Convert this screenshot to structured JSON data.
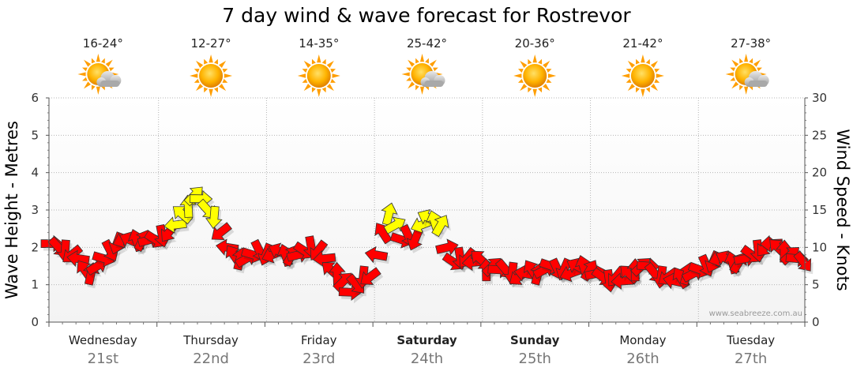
{
  "chart_data": {
    "type": "line",
    "title": "7 day wind & wave forecast for Rostrevor",
    "ylabel_left": "Wave Height - Metres",
    "ylabel_right": "Wind Speed - Knots",
    "ylim_left": [
      0,
      6
    ],
    "ylim_right": [
      0,
      30
    ],
    "left_ticks": [
      "0",
      "1",
      "2",
      "3",
      "4",
      "5",
      "6"
    ],
    "right_ticks": [
      "0",
      "5",
      "10",
      "15",
      "20",
      "25",
      "30"
    ],
    "days": [
      {
        "day": "Wednesday",
        "date": "21st",
        "temp": "16-24°",
        "weather": "partly-cloudy",
        "bold": false
      },
      {
        "day": "Thursday",
        "date": "22nd",
        "temp": "12-27°",
        "weather": "sunny",
        "bold": false
      },
      {
        "day": "Friday",
        "date": "23rd",
        "temp": "14-35°",
        "weather": "sunny",
        "bold": false
      },
      {
        "day": "Saturday",
        "date": "24th",
        "temp": "25-42°",
        "weather": "partly-cloudy",
        "bold": true
      },
      {
        "day": "Sunday",
        "date": "25th",
        "temp": "20-36°",
        "weather": "sunny",
        "bold": true
      },
      {
        "day": "Monday",
        "date": "26th",
        "temp": "21-42°",
        "weather": "sunny",
        "bold": false
      },
      {
        "day": "Tuesday",
        "date": "27th",
        "temp": "27-38°",
        "weather": "partly-cloudy",
        "bold": false
      }
    ],
    "series": [
      {
        "name": "Wind Speed (knots)",
        "colors": {
          "strong": "#ff0000",
          "moderate": "#ffff00",
          "outline": "#333333"
        },
        "points": [
          [
            0.0,
            10.5
          ],
          [
            0.06,
            10.0
          ],
          [
            0.12,
            9.5
          ],
          [
            0.18,
            9.0
          ],
          [
            0.24,
            8.5
          ],
          [
            0.3,
            7.0
          ],
          [
            0.36,
            6.5
          ],
          [
            0.42,
            7.5
          ],
          [
            0.48,
            8.5
          ],
          [
            0.54,
            9.5
          ],
          [
            0.6,
            10.5
          ],
          [
            0.66,
            11.0
          ],
          [
            0.72,
            11.0
          ],
          [
            0.78,
            11.0
          ],
          [
            0.84,
            11.0
          ],
          [
            0.9,
            11.0
          ],
          [
            0.96,
            11.0
          ],
          [
            1.02,
            11.5
          ],
          [
            1.08,
            12.0
          ],
          [
            1.14,
            13.0
          ],
          [
            1.2,
            14.5
          ],
          [
            1.26,
            15.5
          ],
          [
            1.32,
            17.0
          ],
          [
            1.38,
            16.5
          ],
          [
            1.44,
            15.0
          ],
          [
            1.5,
            14.0
          ],
          [
            1.56,
            12.0
          ],
          [
            1.62,
            10.0
          ],
          [
            1.68,
            9.0
          ],
          [
            1.74,
            8.5
          ],
          [
            1.8,
            8.5
          ],
          [
            1.86,
            9.0
          ],
          [
            1.92,
            9.5
          ],
          [
            1.98,
            9.0
          ],
          [
            2.04,
            9.0
          ],
          [
            2.1,
            9.5
          ],
          [
            2.16,
            9.0
          ],
          [
            2.22,
            9.0
          ],
          [
            2.28,
            9.0
          ],
          [
            2.34,
            9.5
          ],
          [
            2.4,
            10.0
          ],
          [
            2.46,
            9.5
          ],
          [
            2.52,
            8.5
          ],
          [
            2.58,
            7.0
          ],
          [
            2.64,
            6.5
          ],
          [
            2.7,
            5.5
          ],
          [
            2.76,
            4.0
          ],
          [
            2.82,
            5.0
          ],
          [
            2.88,
            6.0
          ],
          [
            2.94,
            6.0
          ],
          [
            3.0,
            9.0
          ],
          [
            3.06,
            12.0
          ],
          [
            3.12,
            14.5
          ],
          [
            3.18,
            13.0
          ],
          [
            3.24,
            11.0
          ],
          [
            3.3,
            11.5
          ],
          [
            3.36,
            11.0
          ],
          [
            3.42,
            13.0
          ],
          [
            3.48,
            14.0
          ],
          [
            3.54,
            13.5
          ],
          [
            3.6,
            13.0
          ],
          [
            3.66,
            10.0
          ],
          [
            3.72,
            8.0
          ],
          [
            3.78,
            8.5
          ],
          [
            3.84,
            8.5
          ],
          [
            3.9,
            8.0
          ],
          [
            3.96,
            8.5
          ],
          [
            4.02,
            7.0
          ],
          [
            4.08,
            7.5
          ],
          [
            4.14,
            7.0
          ],
          [
            4.2,
            7.0
          ],
          [
            4.26,
            6.5
          ],
          [
            4.32,
            6.0
          ],
          [
            4.38,
            6.5
          ],
          [
            4.44,
            7.0
          ],
          [
            4.5,
            6.5
          ],
          [
            4.56,
            7.0
          ],
          [
            4.62,
            7.5
          ],
          [
            4.68,
            7.0
          ],
          [
            4.74,
            7.0
          ],
          [
            4.8,
            6.5
          ],
          [
            4.86,
            7.5
          ],
          [
            4.92,
            7.5
          ],
          [
            4.98,
            7.0
          ],
          [
            5.04,
            6.5
          ],
          [
            5.1,
            6.0
          ],
          [
            5.16,
            5.5
          ],
          [
            5.22,
            6.0
          ],
          [
            5.28,
            5.5
          ],
          [
            5.34,
            6.5
          ],
          [
            5.4,
            7.0
          ],
          [
            5.46,
            7.5
          ],
          [
            5.52,
            7.5
          ],
          [
            5.58,
            6.5
          ],
          [
            5.64,
            6.0
          ],
          [
            5.7,
            6.0
          ],
          [
            5.76,
            5.5
          ],
          [
            5.82,
            6.0
          ],
          [
            5.88,
            6.5
          ],
          [
            5.94,
            6.5
          ],
          [
            6.0,
            7.0
          ],
          [
            6.06,
            7.5
          ],
          [
            6.12,
            8.0
          ],
          [
            6.18,
            8.5
          ],
          [
            6.24,
            8.5
          ],
          [
            6.3,
            8.0
          ],
          [
            6.36,
            8.0
          ],
          [
            6.42,
            8.5
          ],
          [
            6.48,
            9.0
          ],
          [
            6.54,
            9.5
          ],
          [
            6.6,
            10.0
          ],
          [
            6.66,
            10.5
          ],
          [
            6.72,
            10.0
          ],
          [
            6.78,
            9.5
          ],
          [
            6.84,
            9.0
          ],
          [
            6.9,
            8.5
          ],
          [
            6.96,
            8.0
          ]
        ]
      }
    ]
  },
  "credit": "www.seabreeze.com.au"
}
